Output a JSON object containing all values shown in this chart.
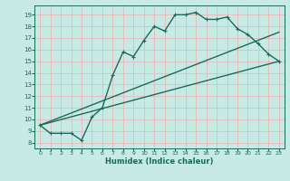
{
  "title": "",
  "xlabel": "Humidex (Indice chaleur)",
  "bg_color": "#c8eae4",
  "grid_color": "#e8b8b8",
  "line_color": "#1a6b5a",
  "xlim": [
    -0.5,
    23.5
  ],
  "ylim": [
    7.5,
    19.8
  ],
  "xticks": [
    0,
    1,
    2,
    3,
    4,
    5,
    6,
    7,
    8,
    9,
    10,
    11,
    12,
    13,
    14,
    15,
    16,
    17,
    18,
    19,
    20,
    21,
    22,
    23
  ],
  "yticks": [
    8,
    9,
    10,
    11,
    12,
    13,
    14,
    15,
    16,
    17,
    18,
    19
  ],
  "main_line_x": [
    0,
    1,
    2,
    3,
    4,
    5,
    6,
    7,
    8,
    9,
    10,
    11,
    12,
    13,
    14,
    15,
    16,
    17,
    18,
    19,
    20,
    21,
    22,
    23
  ],
  "main_line_y": [
    9.5,
    8.8,
    8.8,
    8.8,
    8.2,
    10.2,
    11.0,
    13.8,
    15.8,
    15.4,
    16.8,
    18.0,
    17.6,
    19.0,
    19.0,
    19.2,
    18.6,
    18.6,
    18.8,
    17.8,
    17.3,
    16.5,
    15.6,
    15.0
  ],
  "trend1_x": [
    0,
    23
  ],
  "trend1_y": [
    9.5,
    17.5
  ],
  "trend2_x": [
    0,
    23
  ],
  "trend2_y": [
    9.5,
    15.0
  ],
  "marker_size": 2.5,
  "line_width": 1.0
}
